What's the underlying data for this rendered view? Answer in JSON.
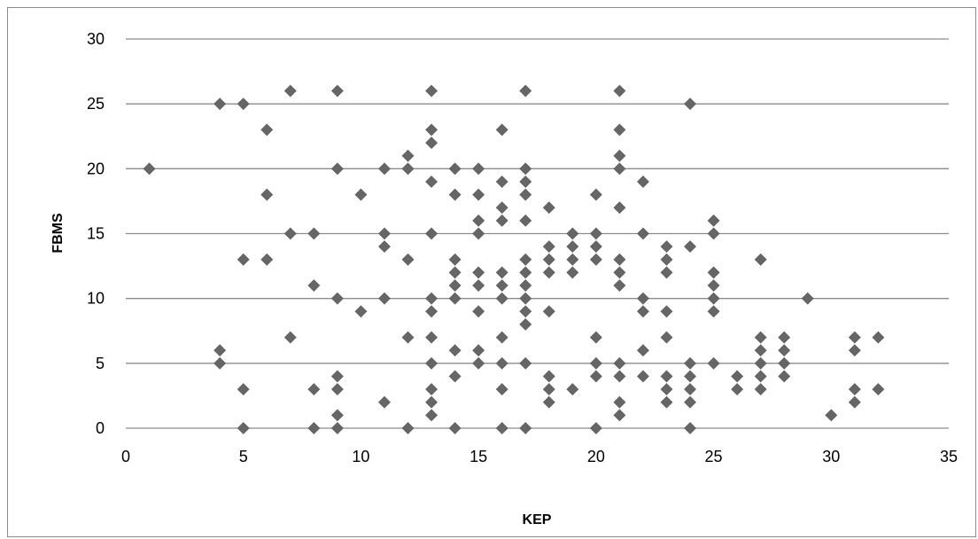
{
  "chart_data": {
    "type": "scatter",
    "title": "",
    "xlabel": "KEP",
    "ylabel": "FBMS",
    "xlim": [
      0,
      35
    ],
    "ylim": [
      0,
      30
    ],
    "xticks": [
      0,
      5,
      10,
      15,
      20,
      25,
      30,
      35
    ],
    "yticks": [
      0,
      5,
      10,
      15,
      20,
      25,
      30
    ],
    "grid": "horizontal",
    "marker": "diamond",
    "marker_color": "#666666",
    "grid_color": "#8c8c8c",
    "points": [
      [
        1,
        20
      ],
      [
        4,
        25
      ],
      [
        4,
        6
      ],
      [
        4,
        5
      ],
      [
        5,
        25
      ],
      [
        5,
        13
      ],
      [
        5,
        3
      ],
      [
        5,
        0
      ],
      [
        6,
        23
      ],
      [
        6,
        18
      ],
      [
        6,
        13
      ],
      [
        7,
        26
      ],
      [
        7,
        15
      ],
      [
        7,
        7
      ],
      [
        8,
        15
      ],
      [
        8,
        11
      ],
      [
        8,
        3
      ],
      [
        8,
        0
      ],
      [
        9,
        26
      ],
      [
        9,
        20
      ],
      [
        9,
        10
      ],
      [
        9,
        4
      ],
      [
        9,
        3
      ],
      [
        9,
        1
      ],
      [
        9,
        0
      ],
      [
        10,
        18
      ],
      [
        10,
        9
      ],
      [
        11,
        20
      ],
      [
        11,
        15
      ],
      [
        11,
        14
      ],
      [
        11,
        10
      ],
      [
        11,
        2
      ],
      [
        12,
        21
      ],
      [
        12,
        20
      ],
      [
        12,
        13
      ],
      [
        12,
        7
      ],
      [
        12,
        0
      ],
      [
        13,
        26
      ],
      [
        13,
        23
      ],
      [
        13,
        22
      ],
      [
        13,
        19
      ],
      [
        13,
        15
      ],
      [
        13,
        10
      ],
      [
        13,
        9
      ],
      [
        13,
        7
      ],
      [
        13,
        5
      ],
      [
        13,
        3
      ],
      [
        13,
        2
      ],
      [
        13,
        1
      ],
      [
        14,
        20
      ],
      [
        14,
        18
      ],
      [
        14,
        13
      ],
      [
        14,
        12
      ],
      [
        14,
        11
      ],
      [
        14,
        10
      ],
      [
        14,
        6
      ],
      [
        14,
        4
      ],
      [
        14,
        0
      ],
      [
        15,
        20
      ],
      [
        15,
        18
      ],
      [
        15,
        16
      ],
      [
        15,
        15
      ],
      [
        15,
        12
      ],
      [
        15,
        11
      ],
      [
        15,
        9
      ],
      [
        15,
        6
      ],
      [
        15,
        5
      ],
      [
        16,
        23
      ],
      [
        16,
        19
      ],
      [
        16,
        17
      ],
      [
        16,
        16
      ],
      [
        16,
        12
      ],
      [
        16,
        11
      ],
      [
        16,
        10
      ],
      [
        16,
        7
      ],
      [
        16,
        5
      ],
      [
        16,
        3
      ],
      [
        16,
        0
      ],
      [
        17,
        26
      ],
      [
        17,
        20
      ],
      [
        17,
        19
      ],
      [
        17,
        18
      ],
      [
        17,
        16
      ],
      [
        17,
        13
      ],
      [
        17,
        12
      ],
      [
        17,
        11
      ],
      [
        17,
        10
      ],
      [
        17,
        9
      ],
      [
        17,
        8
      ],
      [
        17,
        5
      ],
      [
        17,
        0
      ],
      [
        18,
        17
      ],
      [
        18,
        14
      ],
      [
        18,
        13
      ],
      [
        18,
        12
      ],
      [
        18,
        9
      ],
      [
        18,
        4
      ],
      [
        18,
        3
      ],
      [
        18,
        2
      ],
      [
        19,
        15
      ],
      [
        19,
        14
      ],
      [
        19,
        13
      ],
      [
        19,
        12
      ],
      [
        19,
        3
      ],
      [
        20,
        18
      ],
      [
        20,
        15
      ],
      [
        20,
        14
      ],
      [
        20,
        13
      ],
      [
        20,
        7
      ],
      [
        20,
        5
      ],
      [
        20,
        4
      ],
      [
        20,
        0
      ],
      [
        21,
        26
      ],
      [
        21,
        23
      ],
      [
        21,
        21
      ],
      [
        21,
        20
      ],
      [
        21,
        17
      ],
      [
        21,
        13
      ],
      [
        21,
        12
      ],
      [
        21,
        11
      ],
      [
        21,
        5
      ],
      [
        21,
        4
      ],
      [
        21,
        2
      ],
      [
        21,
        1
      ],
      [
        22,
        19
      ],
      [
        22,
        15
      ],
      [
        22,
        10
      ],
      [
        22,
        9
      ],
      [
        22,
        6
      ],
      [
        22,
        4
      ],
      [
        23,
        14
      ],
      [
        23,
        13
      ],
      [
        23,
        12
      ],
      [
        23,
        9
      ],
      [
        23,
        7
      ],
      [
        23,
        4
      ],
      [
        23,
        3
      ],
      [
        23,
        2
      ],
      [
        24,
        25
      ],
      [
        24,
        14
      ],
      [
        24,
        5
      ],
      [
        24,
        4
      ],
      [
        24,
        3
      ],
      [
        24,
        2
      ],
      [
        24,
        0
      ],
      [
        25,
        16
      ],
      [
        25,
        15
      ],
      [
        25,
        12
      ],
      [
        25,
        11
      ],
      [
        25,
        10
      ],
      [
        25,
        9
      ],
      [
        25,
        5
      ],
      [
        26,
        4
      ],
      [
        26,
        3
      ],
      [
        27,
        13
      ],
      [
        27,
        7
      ],
      [
        27,
        6
      ],
      [
        27,
        5
      ],
      [
        27,
        4
      ],
      [
        27,
        3
      ],
      [
        28,
        7
      ],
      [
        28,
        6
      ],
      [
        28,
        5
      ],
      [
        28,
        4
      ],
      [
        29,
        10
      ],
      [
        30,
        1
      ],
      [
        31,
        7
      ],
      [
        31,
        6
      ],
      [
        31,
        3
      ],
      [
        31,
        2
      ],
      [
        32,
        7
      ],
      [
        32,
        3
      ]
    ]
  }
}
